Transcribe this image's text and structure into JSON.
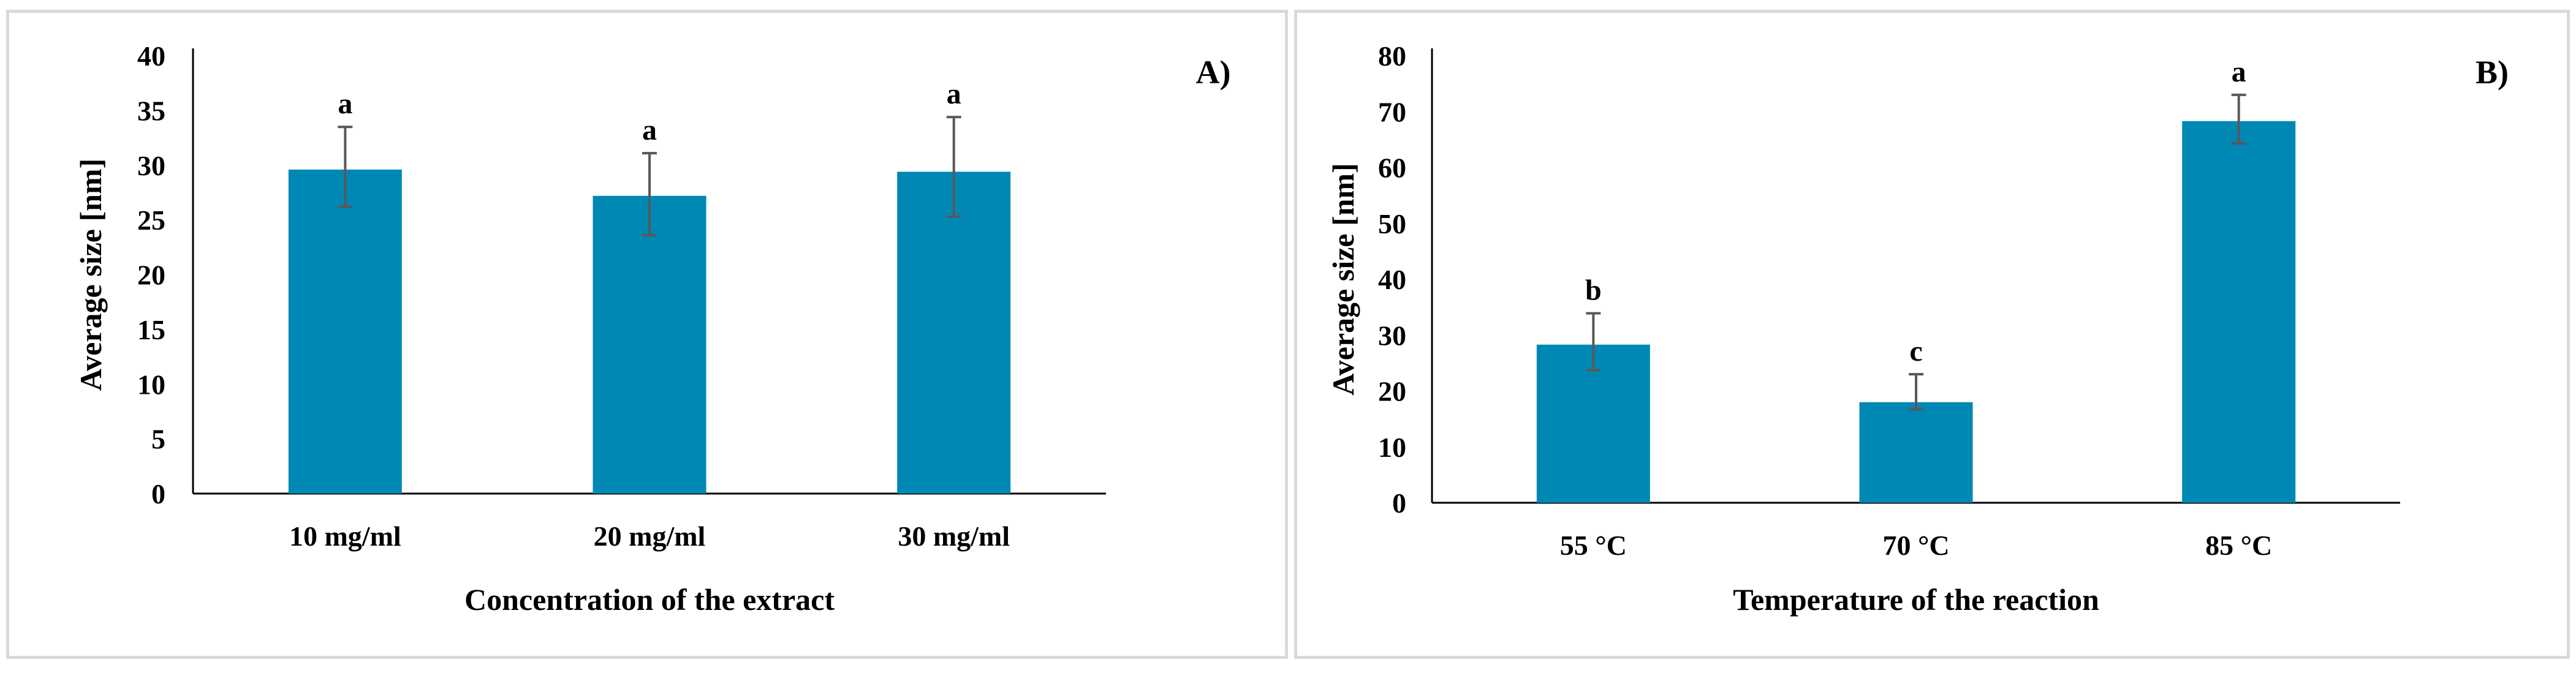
{
  "colors": {
    "bar": "#0088b5",
    "error_bar": "#595959",
    "panel_border": "#d9d9d9"
  },
  "chart_data": [
    {
      "type": "bar",
      "panel_label": "A)",
      "title": "",
      "xlabel": "Concentration of the extract",
      "ylabel": "Average size  [nm]",
      "categories": [
        "10 mg/ml",
        "20 mg/ml",
        "30 mg/ml"
      ],
      "values": [
        29.6,
        27.2,
        29.4
      ],
      "error_plus": [
        3.9,
        3.9,
        5.0
      ],
      "error_minus": [
        3.4,
        3.6,
        4.1
      ],
      "significance": [
        "a",
        "a",
        "a"
      ],
      "ylim": [
        0,
        40
      ],
      "yticks": [
        "0",
        "5",
        "10",
        "15",
        "20",
        "25",
        "30",
        "35",
        "40"
      ],
      "grid": false,
      "legend": "none"
    },
    {
      "type": "bar",
      "panel_label": "B)",
      "title": "",
      "xlabel": "Temperature of the reaction",
      "ylabel": "Average size  [nm]",
      "categories": [
        "55 °C",
        "70 °C",
        "85 °C"
      ],
      "values": [
        28.3,
        18.0,
        68.3
      ],
      "error_plus": [
        5.6,
        5.0,
        4.7
      ],
      "error_minus": [
        4.6,
        1.3,
        4.0
      ],
      "significance": [
        "b",
        "c",
        "a"
      ],
      "ylim": [
        0,
        80
      ],
      "yticks": [
        "0",
        "10",
        "20",
        "30",
        "40",
        "50",
        "60",
        "70",
        "80"
      ],
      "grid": false,
      "legend": "none"
    }
  ]
}
